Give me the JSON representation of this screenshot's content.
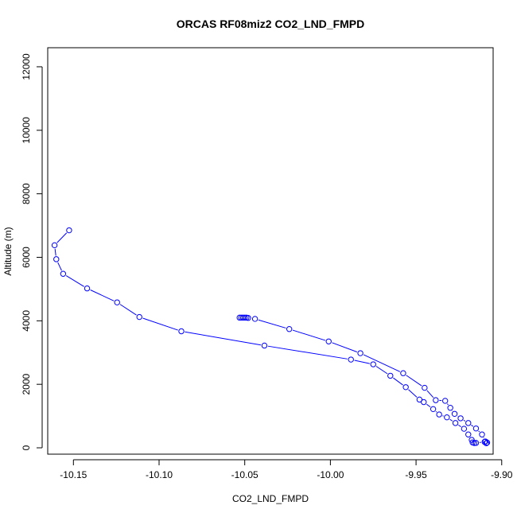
{
  "chart_data": {
    "type": "line",
    "title": "ORCAS RF08miz2 CO2_LND_FMPD",
    "xlabel": "CO2_LND_FMPD",
    "ylabel": "Altitude (m)",
    "xlim": [
      -10.165,
      -9.905
    ],
    "ylim": [
      -200,
      12600
    ],
    "x_ticks": [
      -10.15,
      -10.1,
      -10.05,
      -10.0,
      -9.95,
      -9.9
    ],
    "x_tick_labels": [
      "-10.15",
      "-10.10",
      "-10.05",
      "-10.00",
      "-9.95",
      "-9.90"
    ],
    "y_ticks": [
      0,
      2000,
      4000,
      6000,
      8000,
      10000,
      12000
    ],
    "y_tick_labels": [
      "0",
      "2000",
      "4000",
      "6000",
      "8000",
      "10000",
      "12000"
    ],
    "grid": false,
    "series": [
      {
        "color": "#0000ff",
        "marker": "open-circle",
        "points": [
          [
            -10.1525,
            6850
          ],
          [
            -10.161,
            6380
          ],
          [
            -10.16,
            5940
          ],
          [
            -10.156,
            5480
          ],
          [
            -10.142,
            5020
          ],
          [
            -10.1245,
            4580
          ],
          [
            -10.1115,
            4120
          ],
          [
            -10.087,
            3670
          ],
          [
            -10.0385,
            3220
          ],
          [
            -9.988,
            2780
          ],
          [
            -9.975,
            2630
          ],
          [
            -9.965,
            2270
          ],
          [
            -9.956,
            1910
          ],
          [
            -9.948,
            1520
          ],
          [
            -9.9455,
            1440
          ],
          [
            -9.94,
            1220
          ],
          [
            -9.9365,
            1050
          ],
          [
            -9.932,
            960
          ],
          [
            -9.927,
            780
          ],
          [
            -9.922,
            600
          ],
          [
            -9.9195,
            420
          ],
          [
            -9.9175,
            250
          ],
          [
            -9.917,
            170
          ],
          [
            -9.916,
            150
          ],
          [
            -9.915,
            155
          ],
          [
            -9.91,
            185
          ],
          [
            -9.9085,
            165
          ],
          [
            -9.909,
            145
          ],
          [
            -9.9095,
            200
          ],
          [
            -9.9115,
            420
          ],
          [
            -9.915,
            610
          ],
          [
            -9.9195,
            780
          ],
          [
            -9.924,
            930
          ],
          [
            -9.9275,
            1070
          ],
          [
            -9.93,
            1260
          ],
          [
            -9.933,
            1480
          ],
          [
            -9.9385,
            1500
          ],
          [
            -9.945,
            1890
          ],
          [
            -9.9575,
            2350
          ],
          [
            -9.9825,
            2980
          ],
          [
            -10.001,
            3350
          ],
          [
            -10.024,
            3740
          ],
          [
            -10.044,
            4060
          ],
          [
            -10.048,
            4090
          ],
          [
            -10.049,
            4100
          ],
          [
            -10.05,
            4100
          ],
          [
            -10.051,
            4100
          ],
          [
            -10.052,
            4100
          ],
          [
            -10.053,
            4100
          ]
        ]
      }
    ]
  }
}
